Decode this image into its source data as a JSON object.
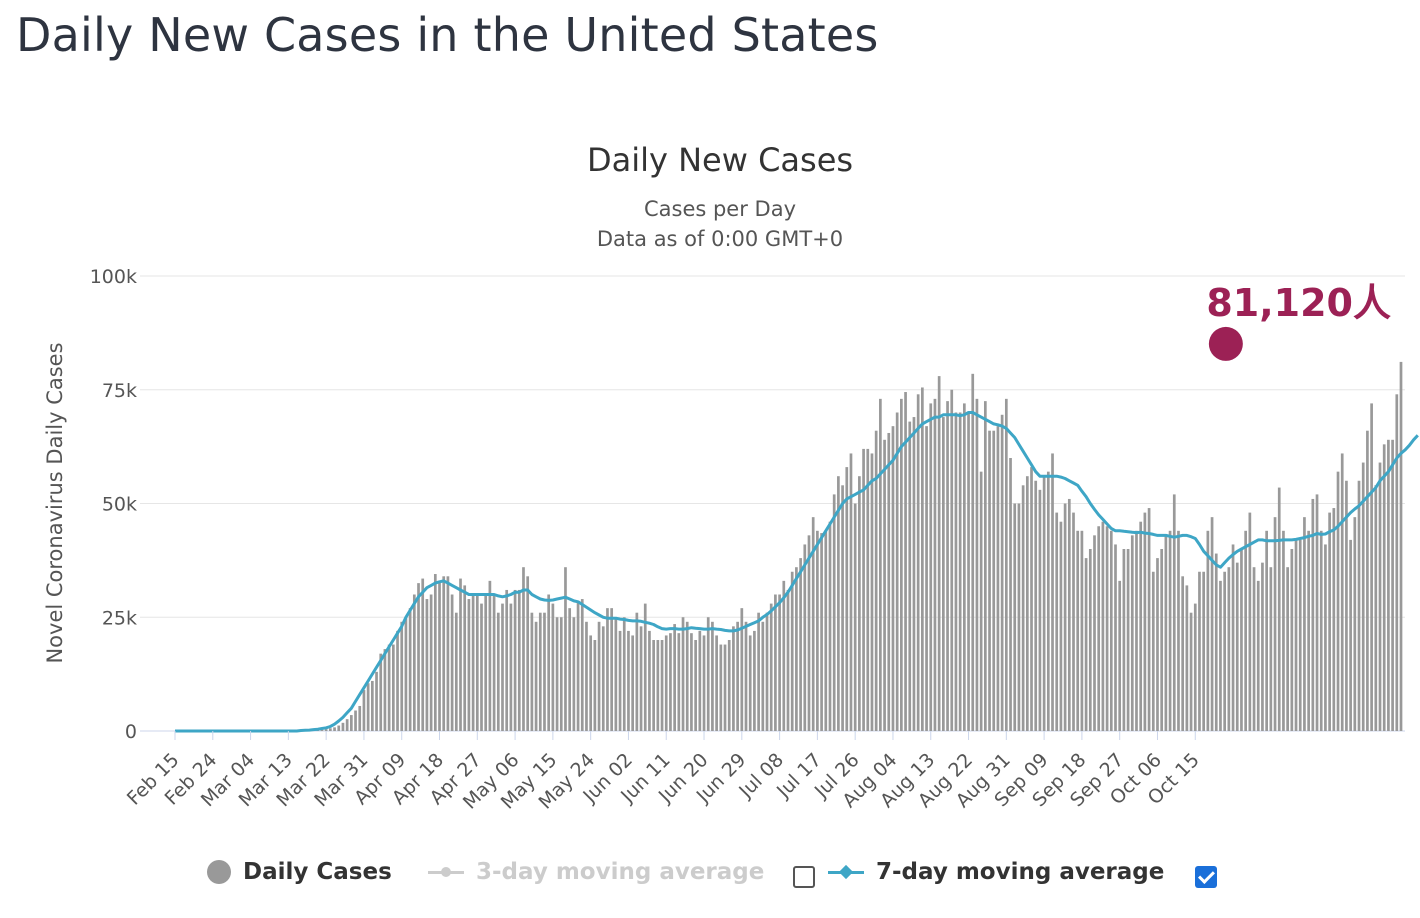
{
  "page": {
    "title": "Daily New Cases in the United States"
  },
  "colors": {
    "bars": "#999999",
    "ma7": "#3ea6c6",
    "peak": "#9c2155",
    "grid": "#e6e6e6",
    "checkbox_checked": "#1a6fd9"
  },
  "legend": {
    "daily": {
      "label": "Daily Cases",
      "icon": "circle-icon",
      "color": "#999999"
    },
    "ma3": {
      "label": "3-day moving average",
      "icon": "circle-line-icon",
      "color": "#cccccc",
      "checked": false
    },
    "ma7": {
      "label": "7-day moving average",
      "icon": "diamond-line-icon",
      "color": "#3ea6c6",
      "checked": true
    }
  },
  "chart_data": {
    "type": "bar",
    "title": "Daily New Cases",
    "subtitle": "Cases per Day",
    "subtitle2": "Data as of 0:00 GMT+0",
    "xlabel": "",
    "ylabel": "Novel Coronavirus Daily Cases",
    "ylim": [
      0,
      100000
    ],
    "yticks": [
      0,
      25000,
      50000,
      75000,
      100000
    ],
    "ytick_labels": [
      "0",
      "25k",
      "50k",
      "75k",
      "100k"
    ],
    "xtick_labels": [
      "Feb 15",
      "Feb 24",
      "Mar 04",
      "Mar 13",
      "Mar 22",
      "Mar 31",
      "Apr 09",
      "Apr 18",
      "Apr 27",
      "May 06",
      "May 15",
      "May 24",
      "Jun 02",
      "Jun 11",
      "Jun 20",
      "Jun 29",
      "Jul 08",
      "Jul 17",
      "Jul 26",
      "Aug 04",
      "Aug 13",
      "Aug 22",
      "Aug 31",
      "Sep 09",
      "Sep 18",
      "Sep 27",
      "Oct 06",
      "Oct 15"
    ],
    "xtick_interval_days": 9,
    "grid": true,
    "legend_position": "bottom",
    "annotation": {
      "text": "81,120人",
      "value": 81120,
      "day_index": 251
    },
    "series": [
      {
        "name": "Daily Cases",
        "kind": "bar",
        "values": [
          0,
          0,
          0,
          0,
          0,
          0,
          0,
          0,
          0,
          0,
          0,
          0,
          0,
          0,
          0,
          0,
          0,
          0,
          0,
          0,
          0,
          0,
          0,
          0,
          0,
          0,
          0,
          0,
          0,
          0,
          10,
          30,
          60,
          100,
          150,
          250,
          400,
          600,
          800,
          1200,
          1800,
          2600,
          3500,
          4500,
          5500,
          9000,
          10500,
          11000,
          13000,
          17000,
          18000,
          19000,
          19000,
          22000,
          24000,
          25000,
          27000,
          30000,
          32500,
          33500,
          29000,
          30000,
          34500,
          33000,
          34000,
          34000,
          30000,
          26000,
          33500,
          32000,
          29000,
          30000,
          30000,
          28000,
          30000,
          33000,
          30000,
          26000,
          28000,
          31000,
          28000,
          31000,
          31000,
          36000,
          34000,
          26000,
          24000,
          26000,
          26000,
          30000,
          28000,
          25000,
          25000,
          36000,
          27000,
          25000,
          28500,
          29000,
          24000,
          21000,
          20000,
          24000,
          23000,
          27000,
          27000,
          25000,
          22000,
          25000,
          22000,
          21000,
          26000,
          23000,
          28000,
          22000,
          20000,
          20000,
          20000,
          21000,
          21500,
          23500,
          21500,
          25000,
          24000,
          21500,
          20000,
          22000,
          21000,
          25000,
          24000,
          21000,
          19000,
          19000,
          20000,
          23000,
          24000,
          27000,
          24000,
          21000,
          22000,
          26000,
          24000,
          26000,
          28000,
          30000,
          30000,
          33000,
          31000,
          35000,
          36000,
          38000,
          41000,
          43000,
          47000,
          44000,
          43500,
          44000,
          46000,
          52000,
          56000,
          54000,
          58000,
          61000,
          50000,
          56000,
          62000,
          62000,
          61000,
          66000,
          73000,
          64000,
          65500,
          67000,
          70000,
          73000,
          74500,
          68000,
          69000,
          74000,
          75500,
          67000,
          72000,
          73000,
          78000,
          69000,
          72500,
          75000,
          70000,
          70000,
          72000,
          70000,
          78500,
          73000,
          57000,
          72500,
          66000,
          66000,
          67000,
          69500,
          73000,
          60000,
          50000,
          50000,
          54000,
          56000,
          58000,
          55000,
          53000,
          56000,
          57000,
          61000,
          48000,
          46000,
          50000,
          51000,
          48000,
          44000,
          44000,
          38000,
          40000,
          43000,
          45000,
          46000,
          45000,
          44000,
          41000,
          33000,
          40000,
          40000,
          43000,
          44000,
          46000,
          48000,
          49000,
          35000,
          38000,
          40000,
          43000,
          44000,
          52000,
          44000,
          34000,
          32000,
          26000,
          28000,
          35000,
          35000,
          44000,
          47000,
          39000,
          33000,
          35000,
          36000,
          41000,
          37000,
          40000,
          44000,
          48000,
          36000,
          33000,
          37000,
          44000,
          36000,
          47000,
          53500,
          44000,
          36000,
          40000,
          42000,
          42000,
          47000,
          44000,
          51000,
          52000,
          44000,
          41000,
          48000,
          49000,
          57000,
          61000,
          55000,
          42000,
          47000,
          55000,
          59000,
          66000,
          72000,
          54000,
          59000,
          63000,
          64000,
          64000,
          74000,
          81120
        ]
      },
      {
        "name": "7-day moving average",
        "kind": "line",
        "values": [
          0,
          0,
          0,
          0,
          0,
          0,
          0,
          0,
          0,
          0,
          0,
          0,
          0,
          0,
          0,
          0,
          0,
          0,
          0,
          0,
          0,
          0,
          0,
          0,
          0,
          0,
          0,
          0,
          0,
          0,
          100,
          150,
          200,
          300,
          400,
          550,
          700,
          1000,
          1500,
          2200,
          3000,
          4000,
          5000,
          6500,
          8000,
          9500,
          11000,
          12500,
          14000,
          15500,
          17000,
          18500,
          20000,
          21500,
          23000,
          25000,
          26500,
          28000,
          29500,
          30500,
          31500,
          32000,
          32500,
          32800,
          33000,
          32500,
          32000,
          31500,
          31000,
          30500,
          30000,
          30000,
          30000,
          30000,
          30000,
          30000,
          30000,
          29700,
          29500,
          29700,
          30000,
          30500,
          30500,
          31000,
          31000,
          30000,
          29500,
          29000,
          28800,
          28700,
          28800,
          29000,
          29200,
          29400,
          29000,
          28600,
          28400,
          27800,
          27200,
          26600,
          26000,
          25500,
          25000,
          24800,
          24800,
          24800,
          24600,
          24500,
          24300,
          24200,
          24200,
          24100,
          23900,
          23700,
          23400,
          22900,
          22500,
          22400,
          22500,
          22500,
          22400,
          22400,
          22500,
          22700,
          22600,
          22500,
          22400,
          22400,
          22500,
          22400,
          22300,
          22100,
          22000,
          22000,
          22200,
          22600,
          23000,
          23400,
          23800,
          24200,
          25000,
          25600,
          26400,
          27300,
          28200,
          29300,
          30500,
          32000,
          33500,
          35000,
          36500,
          38000,
          39500,
          41000,
          42500,
          44000,
          45500,
          47000,
          48500,
          50000,
          51000,
          51500,
          52000,
          52500,
          53000,
          54000,
          55000,
          55500,
          56500,
          57500,
          58500,
          59500,
          61000,
          62500,
          63500,
          64500,
          65500,
          66500,
          67500,
          68000,
          68500,
          69000,
          69000,
          69500,
          69500,
          69500,
          69500,
          69300,
          69500,
          70000,
          70000,
          69500,
          69000,
          68500,
          68000,
          67500,
          67300,
          67000,
          66500,
          65500,
          64500,
          63000,
          61500,
          60000,
          58500,
          57000,
          56000,
          56000,
          56000,
          56000,
          56000,
          55800,
          55500,
          55000,
          54500,
          54000,
          52700,
          51500,
          50000,
          48700,
          47500,
          46500,
          45500,
          44500,
          44000,
          44000,
          43900,
          43800,
          43700,
          43600,
          43700,
          43500,
          43400,
          43200,
          43000,
          43000,
          43000,
          42800,
          42600,
          42800,
          43000,
          43000,
          42700,
          42300,
          41000,
          39500,
          38500,
          37500,
          36500,
          36000,
          37000,
          38000,
          38800,
          39500,
          40000,
          40500,
          41000,
          41500,
          42000,
          42000,
          41800,
          41800,
          41800,
          41900,
          42000,
          42000,
          42000,
          42100,
          42300,
          42500,
          42800,
          43000,
          43400,
          43200,
          43300,
          43800,
          44200,
          45000,
          46000,
          47000,
          48000,
          48800,
          49500,
          50500,
          51500,
          52500,
          53500,
          55000,
          56000,
          57000,
          58500,
          60000,
          61000,
          61800,
          62800,
          64000,
          65000
        ]
      }
    ]
  }
}
